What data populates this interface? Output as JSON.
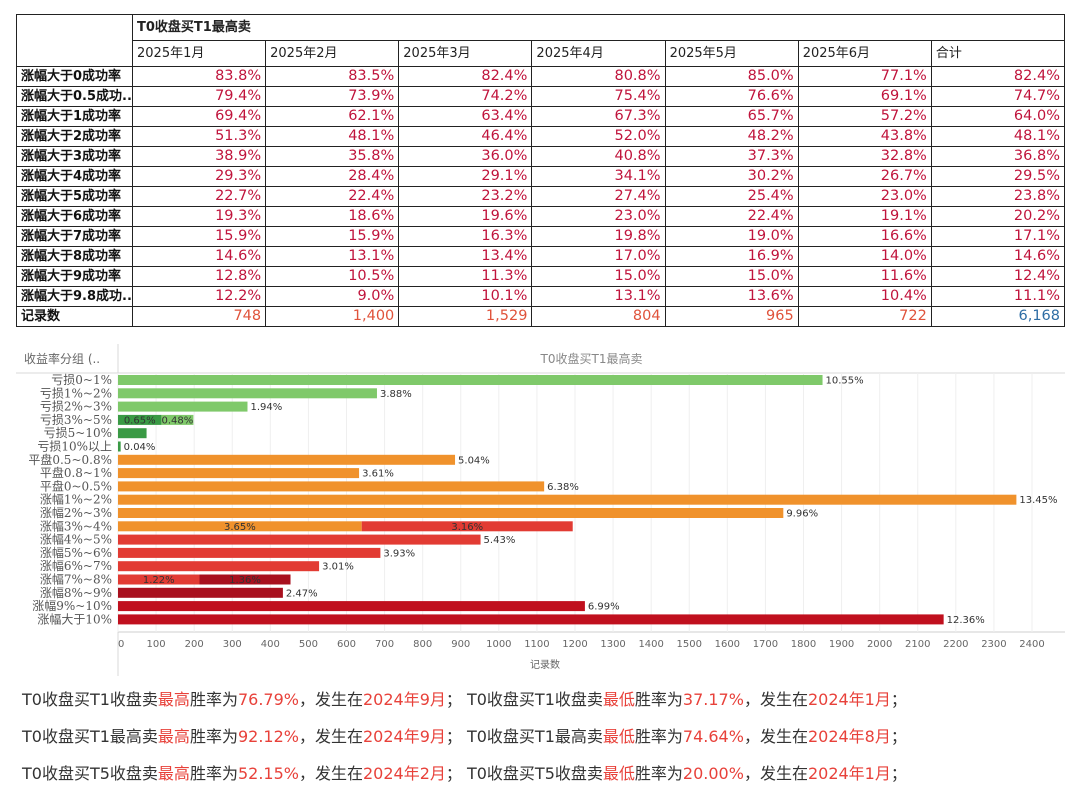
{
  "table": {
    "title": "T0收盘买T1最高卖",
    "columns": [
      "2025年1月",
      "2025年2月",
      "2025年3月",
      "2025年4月",
      "2025年5月",
      "2025年6月",
      "合计"
    ],
    "rows": [
      {
        "label": "涨幅大于0成功率",
        "values": [
          "83.8%",
          "83.5%",
          "82.4%",
          "80.8%",
          "85.0%",
          "77.1%",
          "82.4%"
        ]
      },
      {
        "label": "涨幅大于0.5成功..",
        "values": [
          "79.4%",
          "73.9%",
          "74.2%",
          "75.4%",
          "76.6%",
          "69.1%",
          "74.7%"
        ]
      },
      {
        "label": "涨幅大于1成功率",
        "values": [
          "69.4%",
          "62.1%",
          "63.4%",
          "67.3%",
          "65.7%",
          "57.2%",
          "64.0%"
        ]
      },
      {
        "label": "涨幅大于2成功率",
        "values": [
          "51.3%",
          "48.1%",
          "46.4%",
          "52.0%",
          "48.2%",
          "43.8%",
          "48.1%"
        ]
      },
      {
        "label": "涨幅大于3成功率",
        "values": [
          "38.9%",
          "35.8%",
          "36.0%",
          "40.8%",
          "37.3%",
          "32.8%",
          "36.8%"
        ]
      },
      {
        "label": "涨幅大于4成功率",
        "values": [
          "29.3%",
          "28.4%",
          "29.1%",
          "34.1%",
          "30.2%",
          "26.7%",
          "29.5%"
        ]
      },
      {
        "label": "涨幅大于5成功率",
        "values": [
          "22.7%",
          "22.4%",
          "23.2%",
          "27.4%",
          "25.4%",
          "23.0%",
          "23.8%"
        ]
      },
      {
        "label": "涨幅大于6成功率",
        "values": [
          "19.3%",
          "18.6%",
          "19.6%",
          "23.0%",
          "22.4%",
          "19.1%",
          "20.2%"
        ]
      },
      {
        "label": "涨幅大于7成功率",
        "values": [
          "15.9%",
          "15.9%",
          "16.3%",
          "19.8%",
          "19.0%",
          "16.6%",
          "17.1%"
        ]
      },
      {
        "label": "涨幅大于8成功率",
        "values": [
          "14.6%",
          "13.1%",
          "13.4%",
          "17.0%",
          "16.9%",
          "14.0%",
          "14.6%"
        ]
      },
      {
        "label": "涨幅大于9成功率",
        "values": [
          "12.8%",
          "10.5%",
          "11.3%",
          "15.0%",
          "15.0%",
          "11.6%",
          "12.4%"
        ]
      },
      {
        "label": "涨幅大于9.8成功..",
        "values": [
          "12.2%",
          "9.0%",
          "10.1%",
          "13.1%",
          "13.6%",
          "10.4%",
          "11.1%"
        ]
      }
    ],
    "count_row": {
      "label": "记录数",
      "values": [
        "748",
        "1,400",
        "1,529",
        "804",
        "965",
        "722",
        "6,168"
      ]
    }
  },
  "chart_data": {
    "type": "bar",
    "orientation": "horizontal",
    "title": "T0收盘买T1最高卖",
    "group_header": "收益率分组 (..",
    "xlabel": "记录数",
    "xlim": [
      0,
      2450
    ],
    "xticks": [
      0,
      100,
      200,
      300,
      400,
      500,
      600,
      700,
      800,
      900,
      1000,
      1100,
      1200,
      1300,
      1400,
      1500,
      1600,
      1700,
      1800,
      1900,
      2000,
      2100,
      2200,
      2300,
      2400
    ],
    "grid": true,
    "categories": [
      "亏损0~1%",
      "亏损1%~2%",
      "亏损2%~3%",
      "亏损3%~5%",
      "亏损5~10%",
      "亏损10%以上",
      "平盘0.5~0.8%",
      "平盘0.8~1%",
      "平盘0~0.5%",
      "涨幅1%~2%",
      "涨幅2%~3%",
      "涨幅3%~4%",
      "涨幅4%~5%",
      "涨幅5%~6%",
      "涨幅6%~7%",
      "涨幅7%~8%",
      "涨幅8%~9%",
      "涨幅9%~10%",
      "涨幅大于10%"
    ],
    "bars": [
      {
        "category": "亏损0~1%",
        "segments": [
          {
            "value": 1850,
            "color": "#7fc96a",
            "label": ""
          }
        ],
        "end_label": "10.55%"
      },
      {
        "category": "亏损1%~2%",
        "segments": [
          {
            "value": 680,
            "color": "#7fc96a",
            "label": ""
          }
        ],
        "end_label": "3.88%"
      },
      {
        "category": "亏损2%~3%",
        "segments": [
          {
            "value": 340,
            "color": "#7fc96a",
            "label": ""
          }
        ],
        "end_label": "1.94%"
      },
      {
        "category": "亏损3%~5%",
        "segments": [
          {
            "value": 114,
            "color": "#3a9a45",
            "label": "0.65%"
          },
          {
            "value": 84,
            "color": "#7fc96a",
            "label": "0.48%"
          }
        ],
        "end_label": ""
      },
      {
        "category": "亏损5~10%",
        "segments": [
          {
            "value": 75,
            "color": "#3a9a45",
            "label": ""
          }
        ],
        "end_label": ""
      },
      {
        "category": "亏损10%以上",
        "segments": [
          {
            "value": 7,
            "color": "#3a9a45",
            "label": ""
          }
        ],
        "end_label": "0.04%"
      },
      {
        "category": "平盘0.5~0.8%",
        "segments": [
          {
            "value": 885,
            "color": "#f0922c",
            "label": ""
          }
        ],
        "end_label": "5.04%"
      },
      {
        "category": "平盘0.8~1%",
        "segments": [
          {
            "value": 633,
            "color": "#f0922c",
            "label": ""
          }
        ],
        "end_label": "3.61%"
      },
      {
        "category": "平盘0~0.5%",
        "segments": [
          {
            "value": 1119,
            "color": "#f0922c",
            "label": ""
          }
        ],
        "end_label": "6.38%"
      },
      {
        "category": "涨幅1%~2%",
        "segments": [
          {
            "value": 2359,
            "color": "#f0922c",
            "label": ""
          }
        ],
        "end_label": "13.45%"
      },
      {
        "category": "涨幅2%~3%",
        "segments": [
          {
            "value": 1747,
            "color": "#f0922c",
            "label": ""
          }
        ],
        "end_label": "9.96%"
      },
      {
        "category": "涨幅3%~4%",
        "segments": [
          {
            "value": 640,
            "color": "#f0922c",
            "label": "3.65%"
          },
          {
            "value": 554,
            "color": "#e23b33",
            "label": "3.16%"
          }
        ],
        "end_label": ""
      },
      {
        "category": "涨幅4%~5%",
        "segments": [
          {
            "value": 952,
            "color": "#e23b33",
            "label": ""
          }
        ],
        "end_label": "5.43%"
      },
      {
        "category": "涨幅5%~6%",
        "segments": [
          {
            "value": 689,
            "color": "#e23b33",
            "label": ""
          }
        ],
        "end_label": "3.93%"
      },
      {
        "category": "涨幅6%~7%",
        "segments": [
          {
            "value": 528,
            "color": "#e23b33",
            "label": ""
          }
        ],
        "end_label": "3.01%"
      },
      {
        "category": "涨幅7%~8%",
        "segments": [
          {
            "value": 214,
            "color": "#e23b33",
            "label": "1.22%"
          },
          {
            "value": 239,
            "color": "#a8101e",
            "label": "1.36%"
          }
        ],
        "end_label": ""
      },
      {
        "category": "涨幅8%~9%",
        "segments": [
          {
            "value": 433,
            "color": "#a8101e",
            "label": ""
          }
        ],
        "end_label": "2.47%"
      },
      {
        "category": "涨幅9%~10%",
        "segments": [
          {
            "value": 1226,
            "color": "#c0101e",
            "label": ""
          }
        ],
        "end_label": "6.99%"
      },
      {
        "category": "涨幅大于10%",
        "segments": [
          {
            "value": 2168,
            "color": "#c0101e",
            "label": ""
          }
        ],
        "end_label": "12.36%"
      }
    ]
  },
  "summary": [
    {
      "p1": "T0收盘买T1收盘卖",
      "h1": "最高",
      "p2": "胜率为",
      "h2": "76.79%",
      "p3": "，发生在",
      "h3": "2024年9月",
      "p4": "；  T0收盘买T1收盘卖",
      "h4": "最低",
      "p5": "胜率为",
      "h5": "37.17%",
      "p6": "，发生在",
      "h6": "2024年1月",
      "p7": "；"
    },
    {
      "p1": "T0收盘买T1最高卖",
      "h1": "最高",
      "p2": "胜率为",
      "h2": "92.12%",
      "p3": "，发生在",
      "h3": "2024年9月",
      "p4": "；  T0收盘买T1最高卖",
      "h4": "最低",
      "p5": "胜率为",
      "h5": "74.64%",
      "p6": "，发生在",
      "h6": "2024年8月",
      "p7": "；"
    },
    {
      "p1": "T0收盘买T5收盘卖",
      "h1": "最高",
      "p2": "胜率为",
      "h2": "52.15%",
      "p3": "，发生在",
      "h3": "2024年2月",
      "p4": "；  T0收盘买T5收盘卖",
      "h4": "最低",
      "p5": "胜率为",
      "h5": "20.00%",
      "p6": "，发生在",
      "h6": "2024年1月",
      "p7": "；"
    }
  ]
}
